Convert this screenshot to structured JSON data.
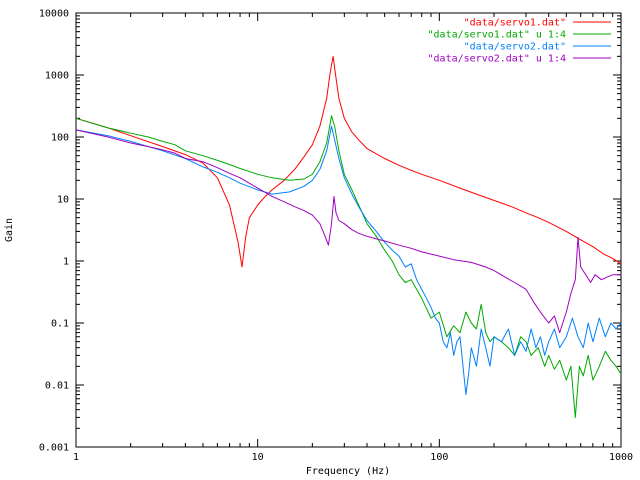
{
  "chart_data": {
    "type": "line",
    "xscale": "log",
    "yscale": "log",
    "xlim": [
      1,
      1000
    ],
    "ylim": [
      0.001,
      10000
    ],
    "xlabel": "Frequency (Hz)",
    "ylabel": "Gain",
    "grid": false,
    "legend_position": "top-right",
    "x_ticks": [
      {
        "value": 1,
        "label": "1"
      },
      {
        "value": 10,
        "label": "10"
      },
      {
        "value": 100,
        "label": "100"
      },
      {
        "value": 1000,
        "label": "1000"
      }
    ],
    "y_ticks": [
      {
        "value": 0.001,
        "label": "0.001"
      },
      {
        "value": 0.01,
        "label": "0.01"
      },
      {
        "value": 0.1,
        "label": "0.1"
      },
      {
        "value": 1,
        "label": "1"
      },
      {
        "value": 10,
        "label": "10"
      },
      {
        "value": 100,
        "label": "100"
      },
      {
        "value": 1000,
        "label": "1000"
      },
      {
        "value": 10000,
        "label": "10000"
      }
    ],
    "series": [
      {
        "name": "\"data/servo1.dat\"",
        "color": "#ff0000",
        "points": [
          [
            1,
            200
          ],
          [
            1.5,
            140
          ],
          [
            2,
            105
          ],
          [
            3,
            70
          ],
          [
            4,
            52
          ],
          [
            5,
            38
          ],
          [
            6,
            22
          ],
          [
            7,
            8
          ],
          [
            7.8,
            2
          ],
          [
            8.2,
            0.8
          ],
          [
            8.6,
            2.5
          ],
          [
            9,
            5
          ],
          [
            10,
            8
          ],
          [
            11,
            11
          ],
          [
            12,
            14
          ],
          [
            14,
            20
          ],
          [
            16,
            30
          ],
          [
            18,
            48
          ],
          [
            20,
            75
          ],
          [
            22,
            150
          ],
          [
            24,
            420
          ],
          [
            25,
            1050
          ],
          [
            26,
            2000
          ],
          [
            26.8,
            1050
          ],
          [
            28,
            420
          ],
          [
            30,
            200
          ],
          [
            33,
            120
          ],
          [
            36,
            90
          ],
          [
            40,
            65
          ],
          [
            50,
            45
          ],
          [
            60,
            35
          ],
          [
            70,
            29
          ],
          [
            80,
            25
          ],
          [
            100,
            20
          ],
          [
            130,
            15
          ],
          [
            160,
            12
          ],
          [
            200,
            9.5
          ],
          [
            250,
            7.5
          ],
          [
            300,
            6
          ],
          [
            350,
            5
          ],
          [
            400,
            4.2
          ],
          [
            500,
            3
          ],
          [
            600,
            2.2
          ],
          [
            700,
            1.7
          ],
          [
            800,
            1.3
          ],
          [
            900,
            1.1
          ],
          [
            1000,
            0.9
          ]
        ]
      },
      {
        "name": "\"data/servo1.dat\" u 1:4",
        "color": "#00aa00",
        "points": [
          [
            1,
            200
          ],
          [
            1.5,
            140
          ],
          [
            2,
            115
          ],
          [
            2.5,
            100
          ],
          [
            3,
            85
          ],
          [
            3.5,
            75
          ],
          [
            4,
            60
          ],
          [
            5,
            50
          ],
          [
            6,
            42
          ],
          [
            7,
            36
          ],
          [
            8,
            31
          ],
          [
            10,
            25
          ],
          [
            12,
            22
          ],
          [
            15,
            20
          ],
          [
            18,
            21
          ],
          [
            20,
            25
          ],
          [
            22,
            40
          ],
          [
            24,
            80
          ],
          [
            25.5,
            220
          ],
          [
            26.5,
            150
          ],
          [
            28,
            60
          ],
          [
            30,
            25
          ],
          [
            33,
            14
          ],
          [
            36,
            8
          ],
          [
            40,
            4
          ],
          [
            45,
            2.5
          ],
          [
            50,
            1.5
          ],
          [
            55,
            1
          ],
          [
            60,
            0.6
          ],
          [
            65,
            0.45
          ],
          [
            70,
            0.5
          ],
          [
            75,
            0.35
          ],
          [
            80,
            0.25
          ],
          [
            90,
            0.12
          ],
          [
            100,
            0.15
          ],
          [
            110,
            0.06
          ],
          [
            120,
            0.09
          ],
          [
            130,
            0.07
          ],
          [
            140,
            0.15
          ],
          [
            150,
            0.1
          ],
          [
            160,
            0.08
          ],
          [
            170,
            0.2
          ],
          [
            180,
            0.07
          ],
          [
            190,
            0.05
          ],
          [
            200,
            0.06
          ],
          [
            220,
            0.05
          ],
          [
            240,
            0.04
          ],
          [
            260,
            0.03
          ],
          [
            280,
            0.06
          ],
          [
            300,
            0.05
          ],
          [
            320,
            0.03
          ],
          [
            350,
            0.04
          ],
          [
            380,
            0.02
          ],
          [
            400,
            0.03
          ],
          [
            430,
            0.018
          ],
          [
            460,
            0.025
          ],
          [
            500,
            0.012
          ],
          [
            530,
            0.02
          ],
          [
            560,
            0.003
          ],
          [
            590,
            0.02
          ],
          [
            620,
            0.014
          ],
          [
            660,
            0.03
          ],
          [
            700,
            0.012
          ],
          [
            760,
            0.02
          ],
          [
            820,
            0.035
          ],
          [
            880,
            0.025
          ],
          [
            940,
            0.02
          ],
          [
            1000,
            0.015
          ]
        ]
      },
      {
        "name": "\"data/servo2.dat\"",
        "color": "#0080ff",
        "points": [
          [
            1,
            130
          ],
          [
            1.5,
            105
          ],
          [
            2,
            85
          ],
          [
            3,
            60
          ],
          [
            4,
            45
          ],
          [
            5,
            33
          ],
          [
            6,
            27
          ],
          [
            7,
            22
          ],
          [
            8,
            18
          ],
          [
            10,
            14
          ],
          [
            12,
            12
          ],
          [
            15,
            13
          ],
          [
            18,
            16
          ],
          [
            20,
            20
          ],
          [
            22,
            30
          ],
          [
            24,
            60
          ],
          [
            25.5,
            150
          ],
          [
            26.5,
            90
          ],
          [
            28,
            45
          ],
          [
            30,
            22
          ],
          [
            33,
            12
          ],
          [
            36,
            7.5
          ],
          [
            40,
            4.5
          ],
          [
            45,
            3
          ],
          [
            50,
            2
          ],
          [
            55,
            1.5
          ],
          [
            60,
            1.2
          ],
          [
            65,
            0.8
          ],
          [
            70,
            0.9
          ],
          [
            75,
            0.5
          ],
          [
            80,
            0.35
          ],
          [
            85,
            0.25
          ],
          [
            90,
            0.18
          ],
          [
            95,
            0.12
          ],
          [
            100,
            0.1
          ],
          [
            105,
            0.05
          ],
          [
            110,
            0.04
          ],
          [
            115,
            0.07
          ],
          [
            120,
            0.03
          ],
          [
            125,
            0.05
          ],
          [
            130,
            0.06
          ],
          [
            135,
            0.02
          ],
          [
            140,
            0.007
          ],
          [
            145,
            0.015
          ],
          [
            150,
            0.04
          ],
          [
            160,
            0.02
          ],
          [
            170,
            0.08
          ],
          [
            180,
            0.04
          ],
          [
            190,
            0.02
          ],
          [
            200,
            0.06
          ],
          [
            220,
            0.05
          ],
          [
            240,
            0.08
          ],
          [
            260,
            0.03
          ],
          [
            280,
            0.05
          ],
          [
            300,
            0.035
          ],
          [
            320,
            0.08
          ],
          [
            340,
            0.04
          ],
          [
            360,
            0.06
          ],
          [
            380,
            0.03
          ],
          [
            400,
            0.05
          ],
          [
            430,
            0.08
          ],
          [
            460,
            0.04
          ],
          [
            500,
            0.06
          ],
          [
            540,
            0.12
          ],
          [
            580,
            0.06
          ],
          [
            620,
            0.04
          ],
          [
            660,
            0.1
          ],
          [
            700,
            0.05
          ],
          [
            760,
            0.12
          ],
          [
            820,
            0.06
          ],
          [
            880,
            0.1
          ],
          [
            940,
            0.08
          ],
          [
            1000,
            0.1
          ]
        ]
      },
      {
        "name": "\"data/servo2.dat\" u 1:4",
        "color": "#a000c0",
        "points": [
          [
            1,
            130
          ],
          [
            1.5,
            100
          ],
          [
            2,
            80
          ],
          [
            2.5,
            70
          ],
          [
            3,
            62
          ],
          [
            3.5,
            55
          ],
          [
            4,
            45
          ],
          [
            5,
            40
          ],
          [
            6,
            32
          ],
          [
            7,
            26
          ],
          [
            8,
            22
          ],
          [
            10,
            15
          ],
          [
            12,
            11
          ],
          [
            14,
            9
          ],
          [
            16,
            7.5
          ],
          [
            18,
            6.5
          ],
          [
            20,
            5.5
          ],
          [
            22,
            4
          ],
          [
            23.5,
            2.5
          ],
          [
            24.5,
            1.8
          ],
          [
            25.5,
            4
          ],
          [
            26.3,
            11
          ],
          [
            27,
            6
          ],
          [
            28,
            4.5
          ],
          [
            30,
            4
          ],
          [
            33,
            3.2
          ],
          [
            36,
            2.8
          ],
          [
            40,
            2.5
          ],
          [
            50,
            2.1
          ],
          [
            60,
            1.8
          ],
          [
            70,
            1.6
          ],
          [
            80,
            1.4
          ],
          [
            100,
            1.2
          ],
          [
            120,
            1.05
          ],
          [
            150,
            0.95
          ],
          [
            180,
            0.8
          ],
          [
            200,
            0.7
          ],
          [
            230,
            0.55
          ],
          [
            260,
            0.45
          ],
          [
            300,
            0.35
          ],
          [
            330,
            0.22
          ],
          [
            360,
            0.15
          ],
          [
            400,
            0.1
          ],
          [
            430,
            0.13
          ],
          [
            460,
            0.07
          ],
          [
            500,
            0.15
          ],
          [
            530,
            0.3
          ],
          [
            560,
            0.5
          ],
          [
            580,
            2.4
          ],
          [
            600,
            0.8
          ],
          [
            640,
            0.6
          ],
          [
            680,
            0.45
          ],
          [
            720,
            0.6
          ],
          [
            780,
            0.5
          ],
          [
            840,
            0.55
          ],
          [
            900,
            0.6
          ],
          [
            1000,
            0.6
          ]
        ]
      }
    ]
  }
}
